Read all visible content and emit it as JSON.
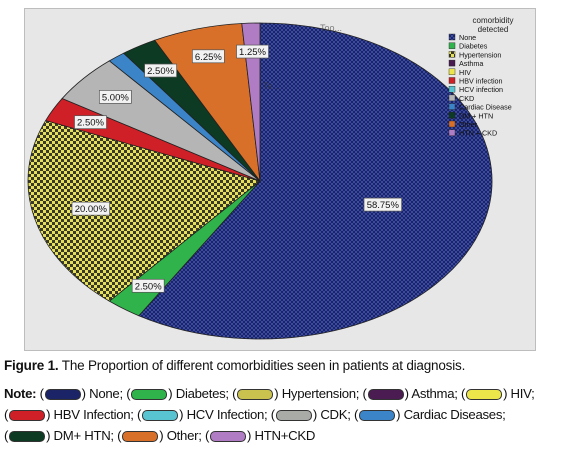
{
  "chart_data": {
    "type": "pie",
    "legend_title": "comorbidity\ndetected",
    "legend_placement": "top-right",
    "slices": [
      {
        "name": "None",
        "value": 58.75,
        "label": "58.75%",
        "color": "#1a2466",
        "pattern": "check-dark"
      },
      {
        "name": "Diabetes",
        "value": 2.5,
        "label": "2.50%",
        "color": "#2fb34a"
      },
      {
        "name": "Hypertension",
        "value": 20.0,
        "label": "20.00%",
        "color": "#c9c24e",
        "pattern": "check-yellow"
      },
      {
        "name": "Asthma",
        "value": 0,
        "label": "",
        "color": "#4a1c52"
      },
      {
        "name": "HIV",
        "value": 0,
        "label": "",
        "color": "#ece64a"
      },
      {
        "name": "HBV infection",
        "value": 2.5,
        "label": "2.50%",
        "color": "#d02027"
      },
      {
        "name": "HCV infection",
        "value": 0,
        "label": "",
        "color": "#58c4d2"
      },
      {
        "name": "CKD",
        "value": 5.0,
        "label": "5.00%",
        "color": "#b5b5b5"
      },
      {
        "name": "Cardiac Disease",
        "value": 1.25,
        "label": "",
        "color": "#3b84c8"
      },
      {
        "name": "DM + HTN",
        "value": 2.5,
        "label": "2.50%",
        "color": "#0c3a22"
      },
      {
        "name": "Other",
        "value": 6.25,
        "label": "6.25%",
        "color": "#d9702a"
      },
      {
        "name": "HTN + CKD",
        "value": 1.25,
        "label": "1.25%",
        "color": "#b07cc4"
      }
    ],
    "extra_annotations": [
      "Too...",
      "Te..."
    ]
  },
  "figure": {
    "label": "Figure 1.",
    "text": " The Proportion of different comorbidities seen in patients at diagnosis."
  },
  "note": {
    "label": "Note:",
    "items": [
      {
        "text": "None;",
        "color": "#1a2466"
      },
      {
        "text": "Diabetes;",
        "color": "#2fb34a"
      },
      {
        "text": "Hypertension;",
        "color": "#c9c24e"
      },
      {
        "text": "Asthma;",
        "color": "#4a1c52"
      },
      {
        "text": "HIV;",
        "color": "#ece64a"
      },
      {
        "text": "HBV Infection;",
        "color": "#d02027"
      },
      {
        "text": "HCV Infection;",
        "color": "#58c4d2"
      },
      {
        "text": "CDK;",
        "color": "#a9aba7"
      },
      {
        "text": "Cardiac Diseases;",
        "color": "#3b84c8"
      },
      {
        "text": "DM+ HTN;",
        "color": "#0c3a22"
      },
      {
        "text": "Other;",
        "color": "#d9702a"
      },
      {
        "text": "HTN+CKD",
        "color": "#b07cc4"
      }
    ]
  }
}
